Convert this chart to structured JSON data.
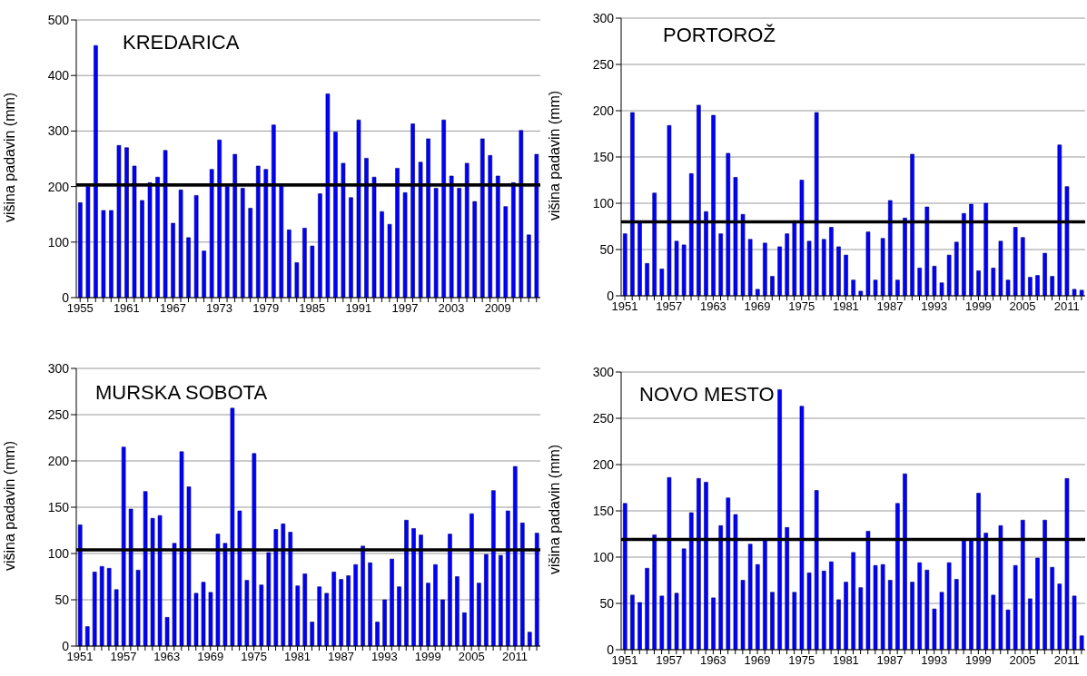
{
  "chart_data": [
    {
      "type": "bar",
      "title": "KREDARICA",
      "ylabel": "višina padavin (mm)",
      "color": "#0000ff",
      "grid": "y",
      "ylim": [
        0,
        500
      ],
      "yticks": [
        0,
        100,
        200,
        300,
        400,
        500
      ],
      "ref_lines": [
        {
          "axis": "y",
          "value": 203,
          "color": "#000000"
        }
      ],
      "categories": [
        "1955",
        null,
        null,
        null,
        null,
        null,
        "1961",
        null,
        null,
        null,
        null,
        null,
        "1967",
        null,
        null,
        null,
        null,
        null,
        "1973",
        null,
        null,
        null,
        null,
        null,
        "1979",
        null,
        null,
        null,
        null,
        null,
        "1985",
        null,
        null,
        null,
        null,
        null,
        "1991",
        null,
        null,
        null,
        null,
        null,
        "1997",
        null,
        null,
        null,
        null,
        null,
        "2003",
        null,
        null,
        null,
        null,
        null,
        "2009",
        null,
        null,
        null,
        null,
        null
      ],
      "values": [
        171,
        200,
        454,
        157,
        157,
        274,
        270,
        237,
        175,
        207,
        217,
        265,
        134,
        194,
        108,
        184,
        84,
        231,
        284,
        200,
        258,
        197,
        161,
        237,
        231,
        311,
        205,
        122,
        63,
        125,
        93,
        187,
        367,
        298,
        242,
        180,
        320,
        251,
        217,
        155,
        132,
        233,
        189,
        313,
        244,
        286,
        197,
        320,
        219,
        197,
        242,
        173,
        286,
        256,
        219,
        164,
        207,
        301,
        113,
        258
      ]
    },
    {
      "type": "bar",
      "title": "PORTOROŽ",
      "ylabel": "višina padavin (mm)",
      "color": "#0000ff",
      "grid": "y",
      "ylim": [
        0,
        300
      ],
      "yticks": [
        0,
        50,
        100,
        150,
        200,
        250,
        300
      ],
      "ref_lines": [
        {
          "axis": "y",
          "value": 80,
          "color": "#000000"
        }
      ],
      "categories": [
        "1951",
        null,
        null,
        null,
        null,
        null,
        "1957",
        null,
        null,
        null,
        null,
        null,
        "1963",
        null,
        null,
        null,
        null,
        null,
        "1969",
        null,
        null,
        null,
        null,
        null,
        "1975",
        null,
        null,
        null,
        null,
        null,
        "1981",
        null,
        null,
        null,
        null,
        null,
        "1987",
        null,
        null,
        null,
        null,
        null,
        "1993",
        null,
        null,
        null,
        null,
        null,
        "1999",
        null,
        null,
        null,
        null,
        null,
        "2005",
        null,
        null,
        null,
        null,
        null,
        "2011",
        null,
        null
      ],
      "values": [
        67,
        198,
        80,
        35,
        111,
        29,
        184,
        59,
        55,
        132,
        206,
        91,
        195,
        67,
        154,
        128,
        88,
        61,
        7,
        57,
        21,
        53,
        67,
        81,
        125,
        59,
        198,
        61,
        74,
        53,
        44,
        17,
        5,
        69,
        17,
        62,
        103,
        17,
        84,
        153,
        30,
        96,
        32,
        14,
        44,
        58,
        89,
        99,
        27,
        100,
        30,
        59,
        17,
        74,
        63,
        20,
        22,
        46,
        21,
        163,
        118,
        7,
        6
      ]
    },
    {
      "type": "bar",
      "title": "MURSKA SOBOTA",
      "ylabel": "višina padavin (mm)",
      "color": "#0000ff",
      "grid": "y",
      "ylim": [
        0,
        300
      ],
      "yticks": [
        0,
        50,
        100,
        150,
        200,
        250,
        300
      ],
      "ref_lines": [
        {
          "axis": "y",
          "value": 104,
          "color": "#000000"
        }
      ],
      "categories": [
        "1951",
        null,
        null,
        null,
        null,
        null,
        "1957",
        null,
        null,
        null,
        null,
        null,
        "1963",
        null,
        null,
        null,
        null,
        null,
        "1969",
        null,
        null,
        null,
        null,
        null,
        "1975",
        null,
        null,
        null,
        null,
        null,
        "1981",
        null,
        null,
        null,
        null,
        null,
        "1987",
        null,
        null,
        null,
        null,
        null,
        "1993",
        null,
        null,
        null,
        null,
        null,
        "1999",
        null,
        null,
        null,
        null,
        null,
        "2005",
        null,
        null,
        null,
        null,
        null,
        "2011",
        null,
        null,
        null
      ],
      "values": [
        131,
        21,
        80,
        86,
        84,
        61,
        215,
        148,
        82,
        167,
        138,
        141,
        31,
        111,
        210,
        172,
        57,
        69,
        58,
        121,
        111,
        257,
        146,
        71,
        208,
        66,
        101,
        126,
        132,
        123,
        65,
        78,
        26,
        64,
        57,
        80,
        72,
        76,
        88,
        108,
        90,
        26,
        50,
        94,
        64,
        136,
        127,
        120,
        68,
        88,
        50,
        121,
        75,
        36,
        143,
        68,
        99,
        168,
        98,
        146,
        194,
        133,
        15,
        122
      ]
    },
    {
      "type": "bar",
      "title": "NOVO MESTO",
      "ylabel": "višina padavin (mm)",
      "color": "#0000ff",
      "grid": "y",
      "ylim": [
        0,
        300
      ],
      "yticks": [
        0,
        50,
        100,
        150,
        200,
        250,
        300
      ],
      "ref_lines": [
        {
          "axis": "y",
          "value": 119,
          "color": "#000000"
        }
      ],
      "categories": [
        "1951",
        null,
        null,
        null,
        null,
        null,
        "1957",
        null,
        null,
        null,
        null,
        null,
        "1963",
        null,
        null,
        null,
        null,
        null,
        "1969",
        null,
        null,
        null,
        null,
        null,
        "1975",
        null,
        null,
        null,
        null,
        null,
        "1981",
        null,
        null,
        null,
        null,
        null,
        "1987",
        null,
        null,
        null,
        null,
        null,
        "1993",
        null,
        null,
        null,
        null,
        null,
        "1999",
        null,
        null,
        null,
        null,
        null,
        "2005",
        null,
        null,
        null,
        null,
        null,
        "2011",
        null,
        null
      ],
      "values": [
        158,
        59,
        51,
        88,
        124,
        58,
        186,
        61,
        109,
        148,
        185,
        181,
        56,
        134,
        164,
        146,
        75,
        114,
        92,
        119,
        62,
        281,
        132,
        62,
        263,
        83,
        172,
        85,
        95,
        54,
        73,
        105,
        67,
        128,
        91,
        92,
        75,
        158,
        190,
        73,
        94,
        86,
        44,
        62,
        94,
        76,
        119,
        119,
        169,
        126,
        59,
        134,
        43,
        91,
        140,
        55,
        99,
        140,
        89,
        71,
        185,
        58,
        15
      ]
    }
  ]
}
